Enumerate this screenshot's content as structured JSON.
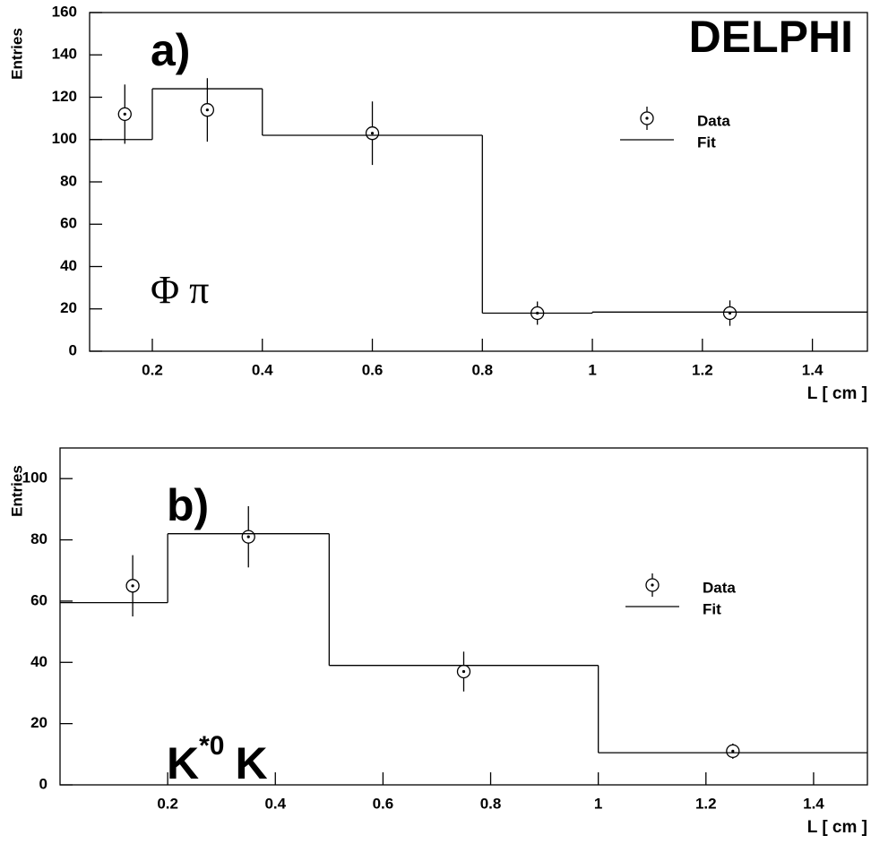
{
  "chart_data": [
    {
      "type": "histogram",
      "title": "a)",
      "label": "DELPHI",
      "annotation": "Φ π",
      "x_label": "L [ cm ]",
      "y_label": "Entries",
      "xlim": [
        0.086,
        1.5
      ],
      "ylim": [
        0,
        160
      ],
      "xticks": [
        0.2,
        0.4,
        0.6,
        0.8,
        1,
        1.2,
        1.4
      ],
      "yticks": [
        0,
        20,
        40,
        60,
        80,
        100,
        120,
        140,
        160
      ],
      "series": [
        {
          "name": "Data",
          "x": [
            0.15,
            0.3,
            0.6,
            0.9,
            1.25
          ],
          "values": [
            112,
            114,
            103,
            18,
            18
          ],
          "errors": [
            14,
            15,
            15,
            5.5,
            6
          ]
        },
        {
          "name": "Fit",
          "bins": [
            0.086,
            0.2,
            0.4,
            0.8,
            1,
            1.5
          ],
          "values": [
            100,
            124,
            102,
            18,
            18.5
          ]
        }
      ]
    },
    {
      "type": "histogram",
      "title": "b)",
      "annotation": "K",
      "annotation_superscript": "*0",
      "annotation_tail": "K",
      "x_label": "L [ cm ]",
      "y_label": "Entries",
      "xlim": [
        0,
        1.5
      ],
      "ylim": [
        0,
        110
      ],
      "xticks": [
        0.2,
        0.4,
        0.6,
        0.8,
        1,
        1.2,
        1.4
      ],
      "yticks": [
        0,
        20,
        40,
        60,
        80,
        100
      ],
      "series": [
        {
          "name": "Data",
          "x": [
            0.135,
            0.35,
            0.75,
            1.25
          ],
          "values": [
            65,
            81,
            37,
            11
          ],
          "errors": [
            10,
            10,
            6.5,
            2.5
          ]
        },
        {
          "name": "Fit",
          "bins": [
            0,
            0.2,
            0.5,
            1,
            1.5
          ],
          "values": [
            59.5,
            82,
            39,
            10.5
          ]
        }
      ]
    }
  ]
}
